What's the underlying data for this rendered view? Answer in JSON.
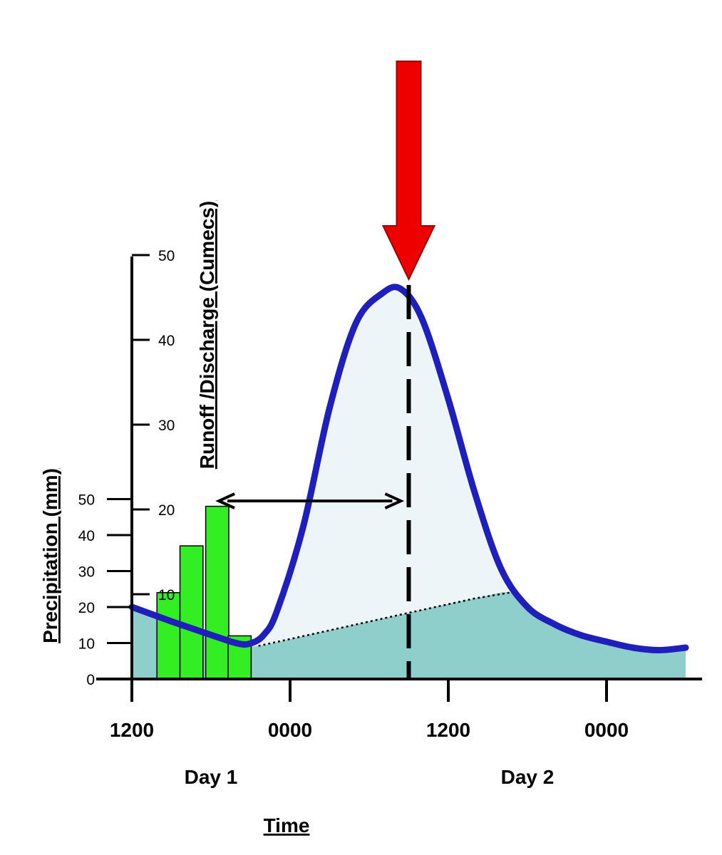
{
  "chart_data": {
    "type": "line",
    "xlabel": "Time",
    "x_ticks": [
      "1200",
      "0000",
      "1200",
      "0000"
    ],
    "day_labels": [
      {
        "text": "Day 1",
        "x_hours": 6
      },
      {
        "text": "Day 2",
        "x_hours": 30
      }
    ],
    "xlim_hours": [
      0,
      42
    ],
    "y_left": {
      "label": "Precipitation (mm)",
      "ticks": [
        0,
        10,
        20,
        30,
        40,
        50
      ],
      "ylim": [
        0,
        50
      ]
    },
    "y_right": {
      "label": "Runoff /Discharge (Cumecs)",
      "ticks": [
        10,
        20,
        30,
        40,
        50
      ],
      "ylim": [
        0,
        50
      ]
    },
    "series": [
      {
        "name": "",
        "kind": "bar",
        "axis": "left",
        "bar_width_hours": 1.75,
        "x_start_hours": [
          1.9,
          3.65,
          5.6,
          7.3
        ],
        "values": [
          24,
          37,
          48,
          12
        ],
        "color": "#33ee22"
      },
      {
        "name": "",
        "kind": "line",
        "axis": "right",
        "color": "#1f1fbb",
        "x_hours": [
          0,
          3,
          6,
          8,
          9,
          10,
          11,
          13,
          15,
          17,
          19,
          20.4,
          22,
          24,
          26,
          28,
          30,
          32,
          34,
          36,
          38,
          40,
          42
        ],
        "values": [
          8.5,
          6.8,
          5.2,
          4.2,
          4.2,
          5.2,
          8,
          18,
          32,
          42,
          45.5,
          46,
          42.5,
          33,
          22,
          13,
          8.5,
          6.5,
          5.2,
          4.4,
          3.7,
          3.4,
          3.7
        ]
      },
      {
        "name": "",
        "kind": "baseflow",
        "axis": "right",
        "x_hours": [
          0,
          3,
          6,
          8,
          9.6,
          14,
          20.4,
          26,
          28.7,
          30,
          32,
          34,
          36,
          38,
          40,
          42
        ],
        "values": [
          8.5,
          6.8,
          5.2,
          4.2,
          3.9,
          5.4,
          7.6,
          9.5,
          10.2,
          8.5,
          6.5,
          5.2,
          4.4,
          3.7,
          3.4,
          3.7
        ]
      }
    ],
    "annotations": [
      {
        "kind": "peak-arrow",
        "x_hours": 21,
        "color": "#ee0000"
      },
      {
        "kind": "peak-line",
        "x_hours": 21
      },
      {
        "kind": "lag-time-arrow",
        "from_hours": 6.6,
        "to_hours": 20.4,
        "y_right": 21
      }
    ],
    "colors": {
      "baseflow_fill": "#8ecfcc",
      "stormflow_fill": "#eef5f9",
      "axis": "#000000"
    }
  }
}
